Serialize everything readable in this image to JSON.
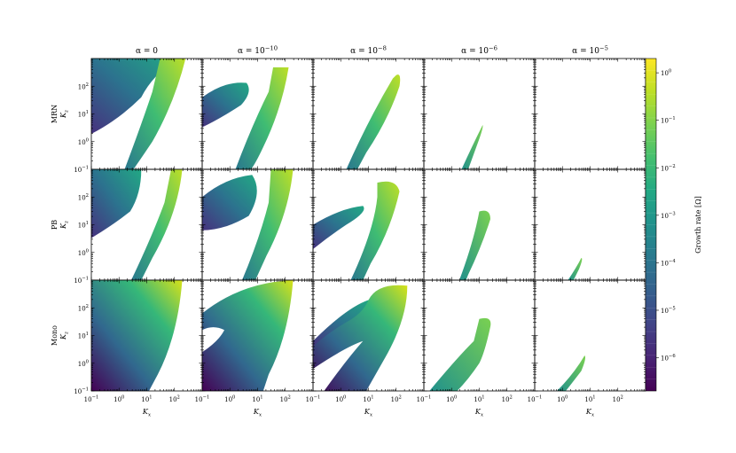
{
  "chart_data": {
    "type": "heatmap",
    "layout": "3 rows x 5 columns of contour panels with shared colorbar",
    "columns": [
      {
        "key": "a0",
        "title_base": "α = 0",
        "title_exp": ""
      },
      {
        "key": "a10",
        "title_base": "α = 10",
        "title_exp": "−10"
      },
      {
        "key": "a8",
        "title_base": "α = 10",
        "title_exp": "−8"
      },
      {
        "key": "a6",
        "title_base": "α = 10",
        "title_exp": "−6"
      },
      {
        "key": "a5",
        "title_base": "α = 10",
        "title_exp": "−5"
      }
    ],
    "rows": [
      {
        "key": "mrn",
        "label": "MRN",
        "ylabel_base": "K",
        "ylabel_sub": "z"
      },
      {
        "key": "pb",
        "label": "PB",
        "ylabel_base": "K",
        "ylabel_sub": "z"
      },
      {
        "key": "mono",
        "label": "Mono",
        "ylabel_base": "K",
        "ylabel_sub": "z"
      }
    ],
    "xlabel_base": "K",
    "xlabel_sub": "x",
    "x_scale": "log",
    "y_scale": "log",
    "xlim": [
      0.1,
      1000
    ],
    "ylim": [
      0.1,
      1000
    ],
    "x_ticks": [
      {
        "base": "10",
        "exp": "−1"
      },
      {
        "base": "10",
        "exp": "0"
      },
      {
        "base": "10",
        "exp": "1"
      },
      {
        "base": "10",
        "exp": "2"
      }
    ],
    "y_ticks": [
      {
        "base": "10",
        "exp": "−1"
      },
      {
        "base": "10",
        "exp": "0"
      },
      {
        "base": "10",
        "exp": "1"
      },
      {
        "base": "10",
        "exp": "2"
      }
    ],
    "colorbar": {
      "label": "Growth rate [Ω]",
      "scale": "log",
      "range": [
        2e-07,
        2
      ],
      "ticks": [
        {
          "base": "10",
          "exp": "0"
        },
        {
          "base": "10",
          "exp": "−1"
        },
        {
          "base": "10",
          "exp": "−2"
        },
        {
          "base": "10",
          "exp": "−3"
        },
        {
          "base": "10",
          "exp": "−4"
        },
        {
          "base": "10",
          "exp": "−5"
        },
        {
          "base": "10",
          "exp": "−6"
        }
      ],
      "colormap": "viridis",
      "colors": [
        "#440154",
        "#482475",
        "#414487",
        "#355f8d",
        "#2a788e",
        "#21918c",
        "#22a884",
        "#44bf70",
        "#7ad151",
        "#bddf26",
        "#fde725"
      ]
    }
  }
}
